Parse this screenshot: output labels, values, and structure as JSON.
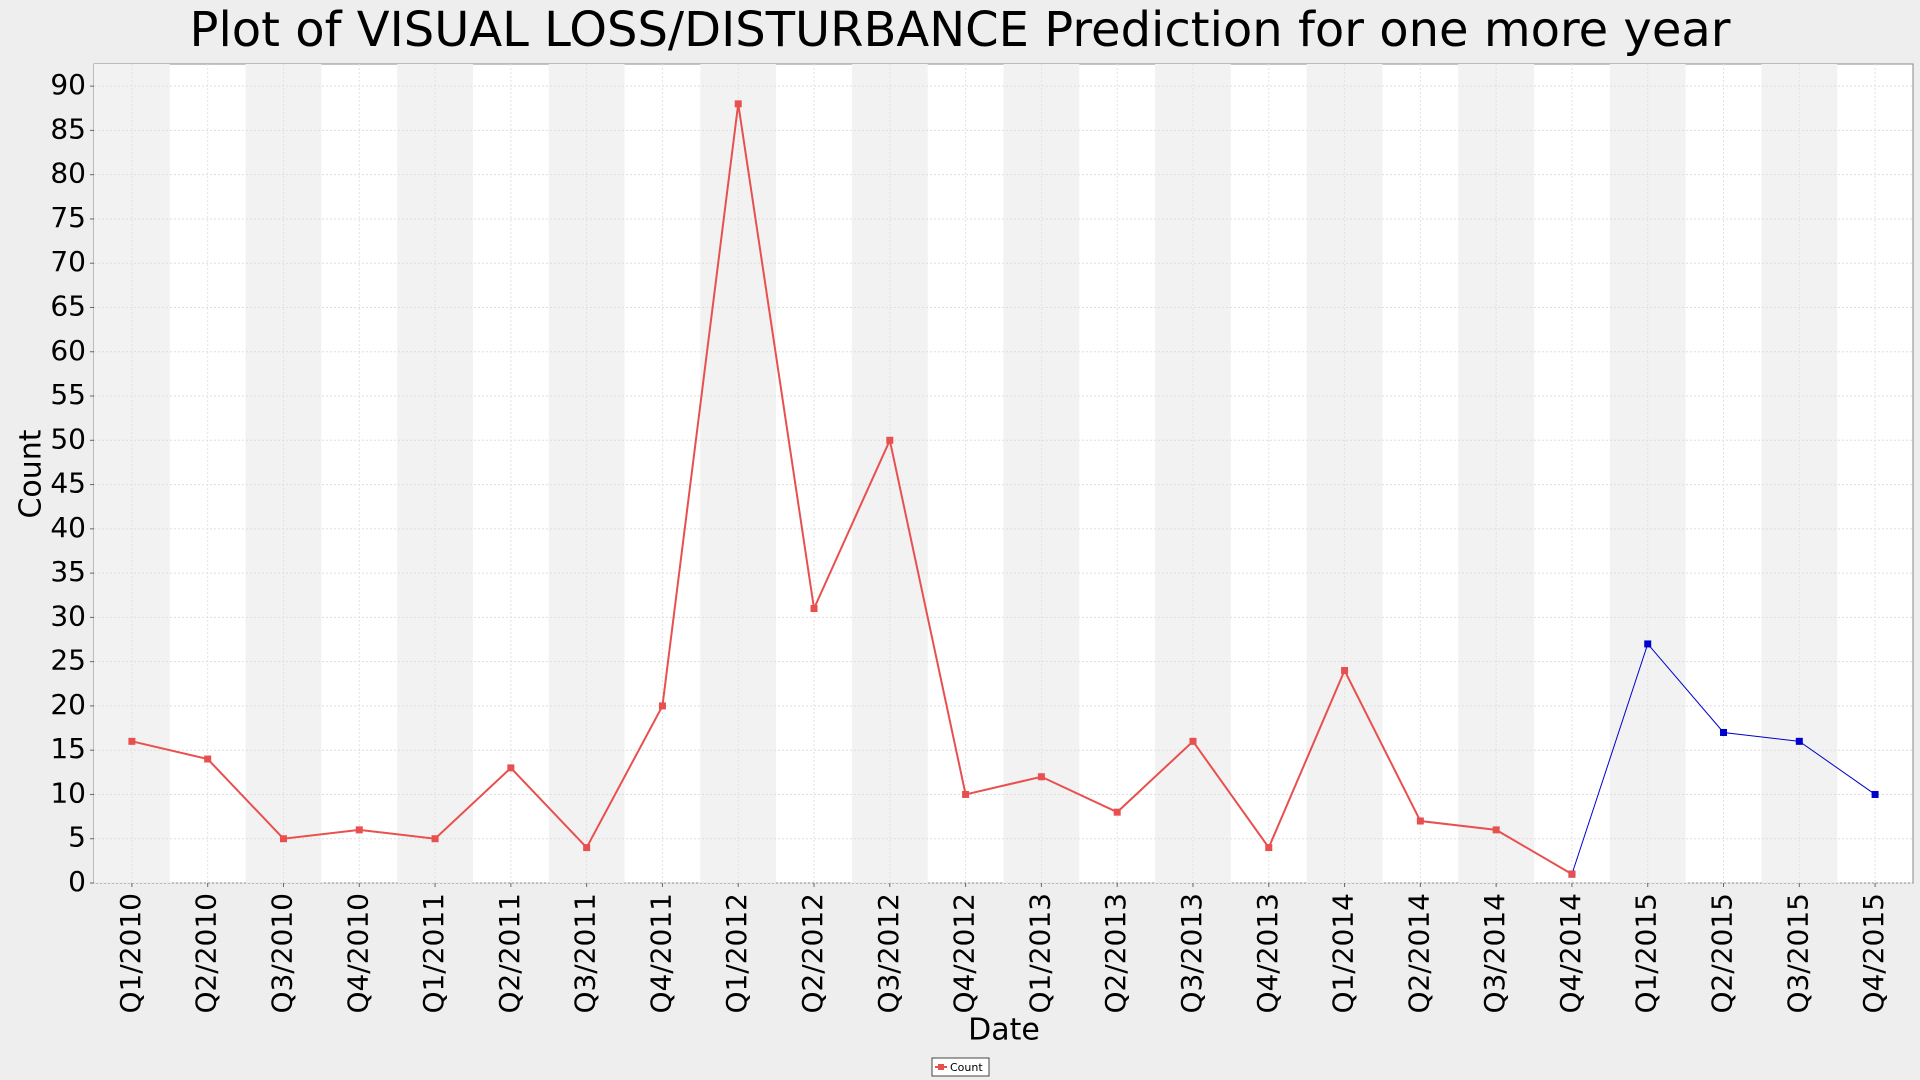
{
  "chart_data": {
    "type": "line",
    "title": "Plot of VISUAL LOSS/DISTURBANCE Prediction for one more year",
    "x_label": "Date",
    "y_label": "Count",
    "categories": [
      "Q1/2010",
      "Q2/2010",
      "Q3/2010",
      "Q4/2010",
      "Q1/2011",
      "Q2/2011",
      "Q3/2011",
      "Q4/2011",
      "Q1/2012",
      "Q2/2012",
      "Q3/2012",
      "Q4/2012",
      "Q1/2013",
      "Q2/2013",
      "Q3/2013",
      "Q4/2013",
      "Q1/2014",
      "Q2/2014",
      "Q3/2014",
      "Q4/2014",
      "Q1/2015",
      "Q2/2015",
      "Q3/2015",
      "Q4/2015"
    ],
    "series": [
      {
        "name": "Count",
        "color": "#e8504f",
        "values": [
          16,
          14,
          5,
          6,
          5,
          13,
          4,
          20,
          88,
          31,
          50,
          10,
          12,
          8,
          16,
          4,
          24,
          7,
          6,
          1,
          null,
          null,
          null,
          null
        ]
      },
      {
        "color": "#0000cc",
        "values": [
          null,
          null,
          null,
          null,
          null,
          null,
          null,
          null,
          null,
          null,
          null,
          null,
          null,
          null,
          null,
          null,
          null,
          null,
          null,
          1,
          27,
          17,
          16,
          10
        ]
      }
    ],
    "ylim": [
      0,
      92.5
    ],
    "yticks": [
      0,
      5,
      10,
      15,
      20,
      25,
      30,
      35,
      40,
      45,
      50,
      55,
      60,
      65,
      70,
      75,
      80,
      85,
      90
    ],
    "grid": true,
    "legend": "bottom"
  }
}
